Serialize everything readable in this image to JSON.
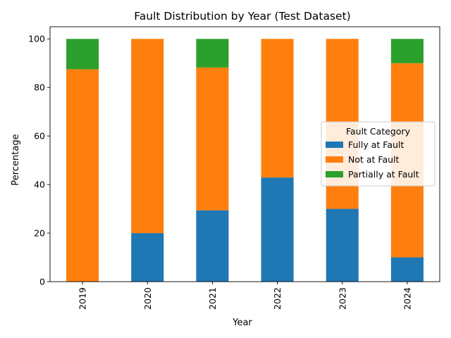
{
  "chart_data": {
    "type": "bar",
    "stacked": true,
    "title": "Fault Distribution by Year (Test Dataset)",
    "xlabel": "Year",
    "ylabel": "Percentage",
    "categories": [
      "2019",
      "2020",
      "2021",
      "2022",
      "2023",
      "2024"
    ],
    "series": [
      {
        "name": "Fully at Fault",
        "color": "#1f77b4",
        "values": [
          0,
          20,
          29.4,
          42.9,
          30,
          10
        ]
      },
      {
        "name": "Not at Fault",
        "color": "#ff7f0e",
        "values": [
          87.5,
          80,
          58.8,
          57.1,
          70,
          80
        ]
      },
      {
        "name": "Partially at Fault",
        "color": "#2ca02c",
        "values": [
          12.5,
          0,
          11.8,
          0,
          0,
          10
        ]
      }
    ],
    "ylim": [
      0,
      105
    ],
    "yticks": [
      0,
      20,
      40,
      60,
      80,
      100
    ],
    "grid": false,
    "legend": {
      "title": "Fault Category",
      "placement": "center-right"
    }
  }
}
